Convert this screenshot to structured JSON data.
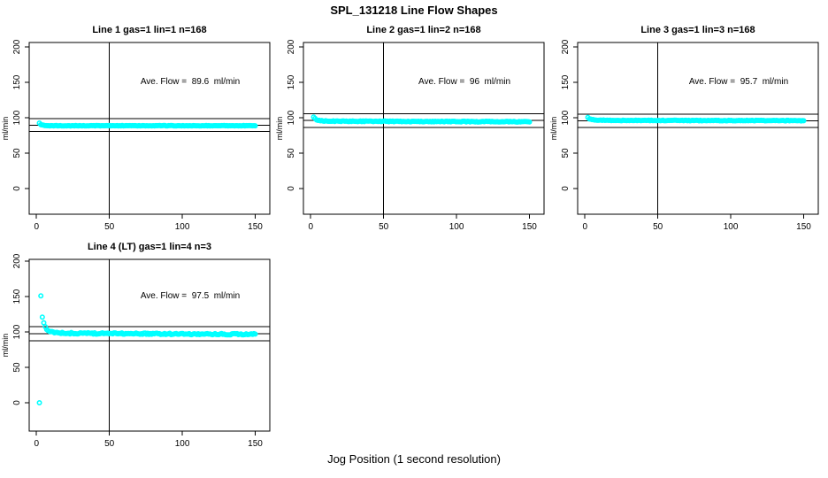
{
  "figure": {
    "title": "SPL_131218  Line Flow Shapes",
    "xlabel": "Jog Position (1 second resolution)",
    "background_color": "#FFFFFF",
    "point_color": "#00FFFF",
    "axis_color": "#000000"
  },
  "chart_data": [
    {
      "type": "scatter",
      "title": "Line 1 gas=1 lin=1 n=168",
      "annotation": "Ave. Flow =  89.6  ml/min",
      "ave_flow": 89.6,
      "n": 168,
      "ylabel": "ml/min",
      "xticks": [
        0,
        50,
        100,
        150
      ],
      "yticks": [
        0,
        50,
        100,
        150,
        200
      ],
      "xlim": [
        -5,
        160
      ],
      "ylim_display": [
        0,
        200
      ],
      "vline_x": 50,
      "ref_lines": {
        "upper": 98.6,
        "lower": 80.6,
        "average": 89.6
      },
      "points": {
        "head": [
          [
            2,
            92.5
          ]
        ],
        "band": {
          "x_start": 3,
          "x_end": 150,
          "count": 167,
          "y_start": 90.5,
          "y_settle": 88.7,
          "y_end": 88.7,
          "tau": 2,
          "noise": 0.35
        }
      }
    },
    {
      "type": "scatter",
      "title": "Line 2 gas=1 lin=2 n=168",
      "annotation": "Ave. Flow =  96  ml/min",
      "ave_flow": 96,
      "n": 168,
      "ylabel": "ml/min",
      "xticks": [
        0,
        50,
        100,
        150
      ],
      "yticks": [
        0,
        50,
        100,
        150,
        200
      ],
      "xlim": [
        -5,
        160
      ],
      "ylim_display": [
        0,
        200
      ],
      "vline_x": 50,
      "ref_lines": {
        "upper": 105.6,
        "lower": 86.4,
        "average": 96
      },
      "points": {
        "head": [
          [
            2,
            101
          ],
          [
            3,
            99
          ]
        ],
        "band": {
          "x_start": 4,
          "x_end": 150,
          "count": 166,
          "y_start": 97,
          "y_settle": 95.2,
          "y_end": 94.3,
          "tau": 3,
          "noise": 0.55
        }
      }
    },
    {
      "type": "scatter",
      "title": "Line 3 gas=1 lin=3 n=168",
      "annotation": "Ave. Flow =  95.7  ml/min",
      "ave_flow": 95.7,
      "n": 168,
      "ylabel": "ml/min",
      "xticks": [
        0,
        50,
        100,
        150
      ],
      "yticks": [
        0,
        50,
        100,
        150,
        200
      ],
      "xlim": [
        -5,
        160
      ],
      "ylim_display": [
        0,
        200
      ],
      "vline_x": 50,
      "ref_lines": {
        "upper": 105.3,
        "lower": 86.1,
        "average": 95.7
      },
      "points": {
        "head": [
          [
            2,
            100.5
          ]
        ],
        "band": {
          "x_start": 3,
          "x_end": 150,
          "count": 167,
          "y_start": 98.5,
          "y_settle": 96.3,
          "y_end": 95.9,
          "tau": 3,
          "noise": 0.45
        }
      }
    },
    {
      "type": "scatter",
      "title": "Line 4 (LT) gas=1 lin=4 n=3",
      "annotation": "Ave. Flow =  97.5  ml/min",
      "ave_flow": 97.5,
      "n": 3,
      "ylabel": "ml/min",
      "xticks": [
        0,
        50,
        100,
        150
      ],
      "yticks": [
        0,
        50,
        100,
        150,
        200
      ],
      "xlim": [
        -5,
        160
      ],
      "ylim_display": [
        0,
        200
      ],
      "vline_x": 50,
      "ref_lines": {
        "upper": 107.25,
        "lower": 87.75,
        "average": 97.5
      },
      "points": {
        "head": [
          [
            2,
            0
          ],
          [
            3,
            151
          ],
          [
            4,
            121
          ],
          [
            5,
            113
          ],
          [
            6,
            107.5
          ]
        ],
        "band": {
          "x_start": 7,
          "x_end": 150,
          "count": 162,
          "y_start": 103.5,
          "y_settle": 98.3,
          "y_end": 96.6,
          "tau": 4,
          "noise": 1.0
        }
      }
    }
  ]
}
